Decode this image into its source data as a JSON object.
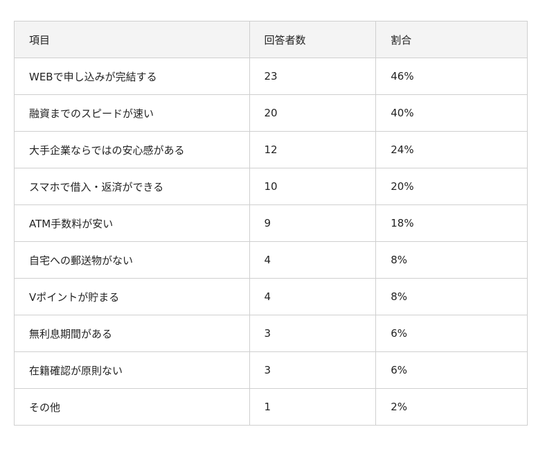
{
  "table": {
    "headers": [
      "項目",
      "回答者数",
      "割合"
    ],
    "rows": [
      [
        "WEBで申し込みが完結する",
        "23",
        "46%"
      ],
      [
        "融資までのスピードが速い",
        "20",
        "40%"
      ],
      [
        "大手企業ならではの安心感がある",
        "12",
        "24%"
      ],
      [
        "スマホで借入・返済ができる",
        "10",
        "20%"
      ],
      [
        "ATM手数料が安い",
        "9",
        "18%"
      ],
      [
        "自宅への郵送物がない",
        "4",
        "8%"
      ],
      [
        "Vポイントが貯まる",
        "4",
        "8%"
      ],
      [
        "無利息期間がある",
        "3",
        "6%"
      ],
      [
        "在籍確認が原則ない",
        "3",
        "6%"
      ],
      [
        "その他",
        "1",
        "2%"
      ]
    ]
  }
}
